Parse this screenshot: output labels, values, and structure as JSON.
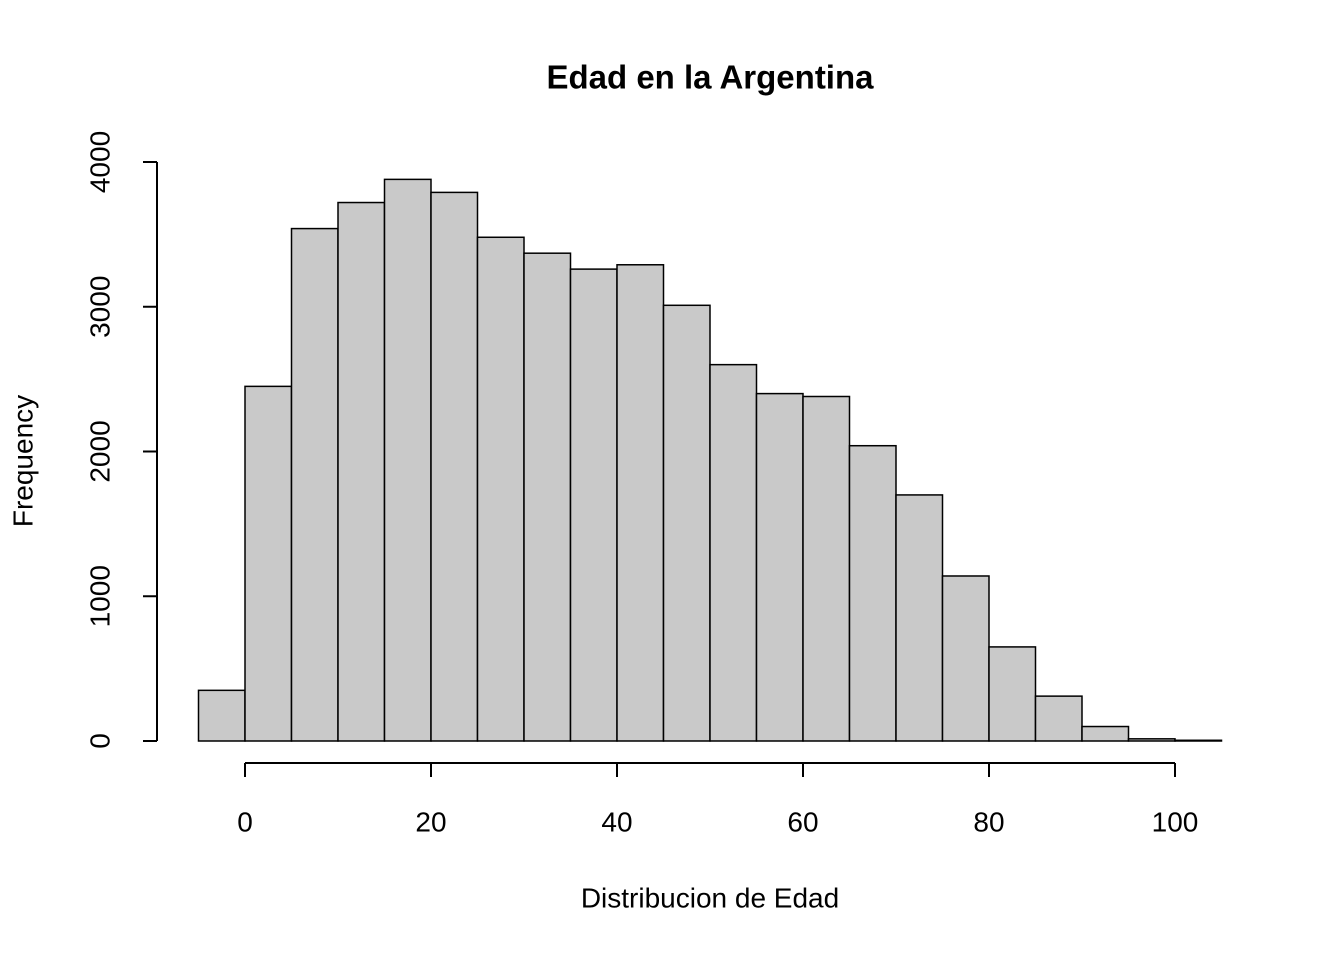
{
  "chart_data": {
    "type": "histogram",
    "title": "Edad en la Argentina",
    "x_label": "Distribucion de Edad",
    "y_label": "Frequency",
    "bins": [
      -5,
      0,
      5,
      10,
      15,
      20,
      25,
      30,
      35,
      40,
      45,
      50,
      55,
      60,
      65,
      70,
      75,
      80,
      85,
      90,
      95,
      100,
      105
    ],
    "counts": [
      350,
      2450,
      3540,
      3720,
      3880,
      3790,
      3480,
      3370,
      3260,
      3290,
      3010,
      2600,
      2400,
      2380,
      2040,
      1700,
      1140,
      650,
      310,
      100,
      15,
      5
    ],
    "color": "#c9c9c9",
    "xlim": [
      -5,
      105
    ],
    "xticks": [
      0,
      20,
      40,
      60,
      80,
      100
    ],
    "ylim": [
      0,
      4000
    ],
    "yticks": [
      0,
      1000,
      2000,
      3000,
      4000
    ],
    "grid": false
  }
}
